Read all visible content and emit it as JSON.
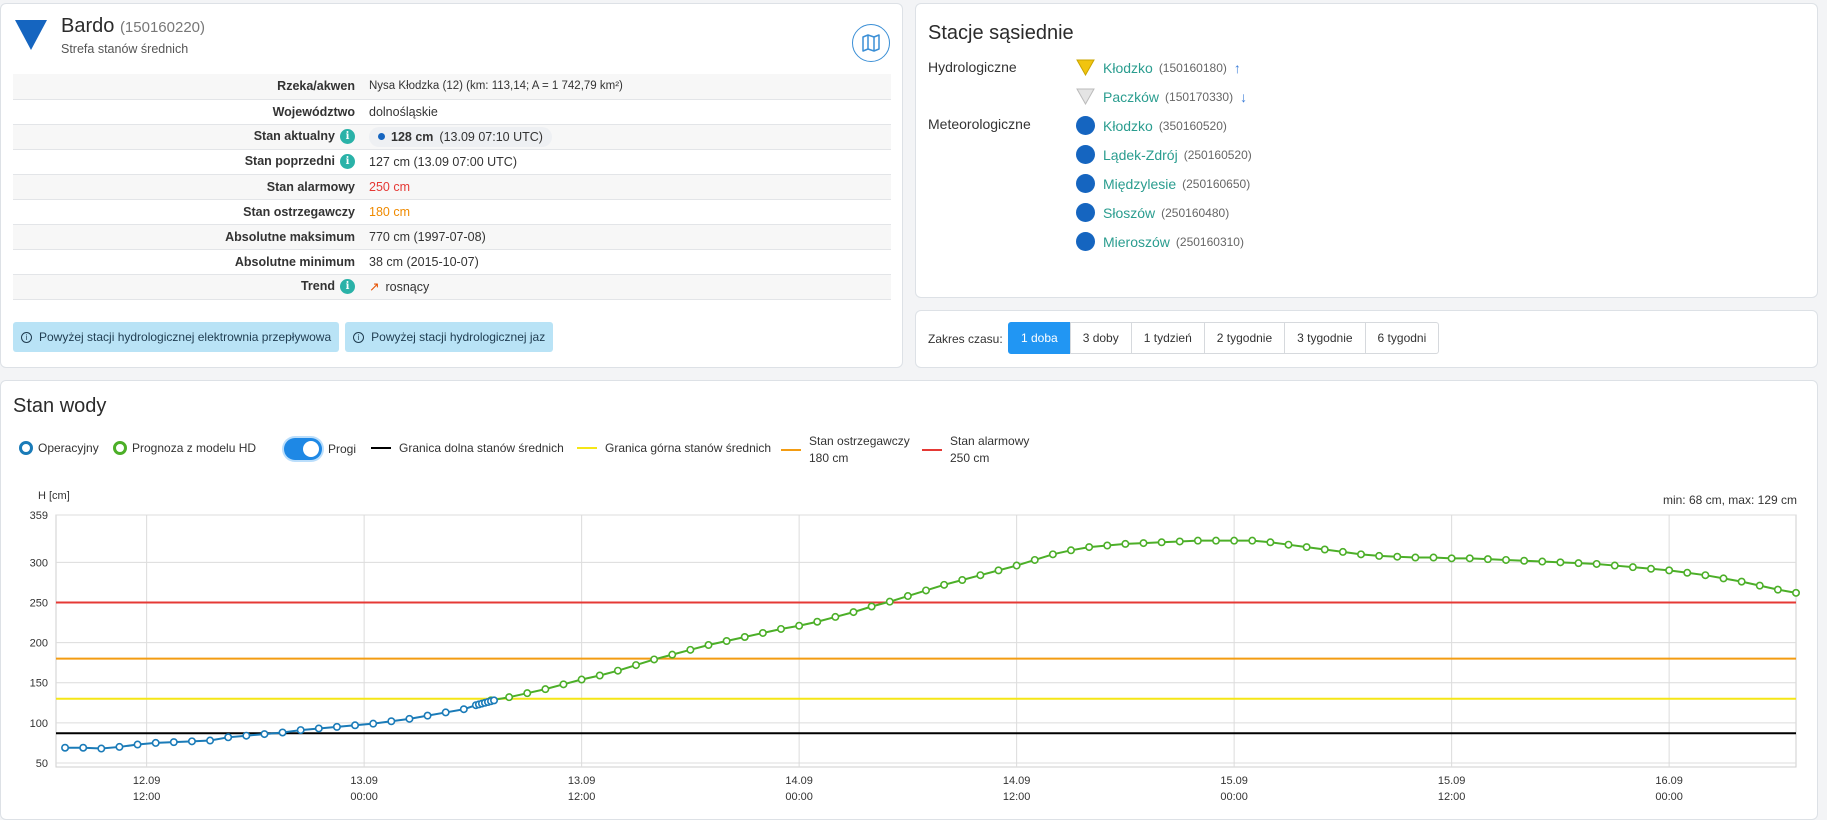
{
  "station": {
    "name": "Bardo",
    "code": "(150160220)",
    "zone": "Strefa stanów średnich",
    "rows": [
      {
        "label": "Rzeka/akwen",
        "value": "Nysa Kłodzka (12) (km: 113,14; A = 1 742,79 km²)"
      },
      {
        "label": "Województwo",
        "value": "dolnośląskie"
      },
      {
        "label": "Stan aktualny",
        "value_bold": "128 cm",
        "value_time": "(13.09 07:10 UTC)"
      },
      {
        "label": "Stan poprzedni",
        "value": "127 cm (13.09 07:00 UTC)"
      },
      {
        "label": "Stan alarmowy",
        "value": "250 cm"
      },
      {
        "label": "Stan ostrzegawczy",
        "value": "180 cm"
      },
      {
        "label": "Absolutne maksimum",
        "value": "770 cm (1997-07-08)"
      },
      {
        "label": "Absolutne minimum",
        "value": "38 cm (2015-10-07)"
      },
      {
        "label": "Trend",
        "value": "rosnący"
      }
    ],
    "chips": [
      "Powyżej stacji hydrologicznej elektrownia przepływowa",
      "Powyżej stacji hydrologicznej jaz"
    ]
  },
  "neighbors": {
    "title": "Stacje sąsiednie",
    "hydro_label": "Hydrologiczne",
    "meteo_label": "Meteorologiczne",
    "hydro": [
      {
        "name": "Kłodzko",
        "code": "(150160180)",
        "arrow": "↑",
        "color": "#f1c40f"
      },
      {
        "name": "Paczków",
        "code": "(150170330)",
        "arrow": "↓",
        "color": "#dddddd"
      }
    ],
    "meteo": [
      {
        "name": "Kłodzko",
        "code": "(350160520)"
      },
      {
        "name": "Lądek-Zdrój",
        "code": "(250160520)"
      },
      {
        "name": "Międzylesie",
        "code": "(250160650)"
      },
      {
        "name": "Słoszów",
        "code": "(250160480)"
      },
      {
        "name": "Mieroszów",
        "code": "(250160310)"
      }
    ]
  },
  "range": {
    "label": "Zakres czasu:",
    "options": [
      "1 doba",
      "3 doby",
      "1 tydzień",
      "2 tygodnie",
      "3 tygodnie",
      "6 tygodni"
    ],
    "active": 0
  },
  "water": {
    "title": "Stan wody",
    "legend": {
      "operational": "Operacyjny",
      "forecast": "Prognoza z modelu HD",
      "thresholds": "Progi",
      "lower": "Granica dolna stanów średnich",
      "upper": "Granica górna stanów średnich",
      "warning_title": "Stan ostrzegawczy",
      "warning_value": "180 cm",
      "alarm_title": "Stan alarmowy",
      "alarm_value": "250 cm"
    },
    "minmax": "min: 68 cm, max: 129 cm",
    "colors": {
      "operational": "#1a7bb8",
      "forecast": "#4caf28",
      "lower": "#000000",
      "upper": "#f5e616",
      "warning": "#f39c12",
      "alarm": "#e53935"
    }
  },
  "chart_data": {
    "type": "line",
    "ylabel": "H [cm]",
    "ylim": [
      45,
      359
    ],
    "yticks": [
      50,
      100,
      150,
      200,
      250,
      300,
      359
    ],
    "xlim": [
      "2024-09-12 07:00",
      "2024-09-16 07:00"
    ],
    "xticks": [
      {
        "date": "12.09",
        "time": "12:00",
        "t": "2024-09-12 12:00"
      },
      {
        "date": "13.09",
        "time": "00:00",
        "t": "2024-09-13 00:00"
      },
      {
        "date": "13.09",
        "time": "12:00",
        "t": "2024-09-13 12:00"
      },
      {
        "date": "14.09",
        "time": "00:00",
        "t": "2024-09-14 00:00"
      },
      {
        "date": "14.09",
        "time": "12:00",
        "t": "2024-09-14 12:00"
      },
      {
        "date": "15.09",
        "time": "00:00",
        "t": "2024-09-15 00:00"
      },
      {
        "date": "15.09",
        "time": "12:00",
        "t": "2024-09-15 12:00"
      },
      {
        "date": "16.09",
        "time": "00:00",
        "t": "2024-09-16 00:00"
      }
    ],
    "thresholds": [
      {
        "name": "Granica dolna stanów średnich",
        "value": 87
      },
      {
        "name": "Granica górna stanów średnich",
        "value": 130
      },
      {
        "name": "Stan ostrzegawczy",
        "value": 180
      },
      {
        "name": "Stan alarmowy",
        "value": 250
      }
    ],
    "series": [
      {
        "name": "Operacyjny",
        "points": [
          [
            "2024-09-12 07:30",
            69
          ],
          [
            "2024-09-12 08:30",
            69
          ],
          [
            "2024-09-12 09:30",
            68
          ],
          [
            "2024-09-12 10:30",
            70
          ],
          [
            "2024-09-12 11:30",
            73
          ],
          [
            "2024-09-12 12:30",
            75
          ],
          [
            "2024-09-12 13:30",
            76
          ],
          [
            "2024-09-12 14:30",
            77
          ],
          [
            "2024-09-12 15:30",
            78
          ],
          [
            "2024-09-12 16:30",
            82
          ],
          [
            "2024-09-12 17:30",
            84
          ],
          [
            "2024-09-12 18:30",
            86
          ],
          [
            "2024-09-12 19:30",
            88
          ],
          [
            "2024-09-12 20:30",
            91
          ],
          [
            "2024-09-12 21:30",
            93
          ],
          [
            "2024-09-12 22:30",
            95
          ],
          [
            "2024-09-12 23:30",
            97
          ],
          [
            "2024-09-13 00:30",
            99
          ],
          [
            "2024-09-13 01:30",
            102
          ],
          [
            "2024-09-13 02:30",
            105
          ],
          [
            "2024-09-13 03:30",
            109
          ],
          [
            "2024-09-13 04:30",
            113
          ],
          [
            "2024-09-13 05:30",
            117
          ],
          [
            "2024-09-13 06:10",
            122
          ],
          [
            "2024-09-13 06:20",
            123
          ],
          [
            "2024-09-13 06:30",
            124
          ],
          [
            "2024-09-13 06:40",
            125
          ],
          [
            "2024-09-13 06:50",
            126
          ],
          [
            "2024-09-13 07:00",
            127
          ],
          [
            "2024-09-13 07:10",
            128
          ]
        ]
      },
      {
        "name": "Prognoza z modelu HD",
        "points": [
          [
            "2024-09-13 07:00",
            128
          ],
          [
            "2024-09-13 08:00",
            132
          ],
          [
            "2024-09-13 09:00",
            137
          ],
          [
            "2024-09-13 10:00",
            142
          ],
          [
            "2024-09-13 11:00",
            148
          ],
          [
            "2024-09-13 12:00",
            154
          ],
          [
            "2024-09-13 13:00",
            159
          ],
          [
            "2024-09-13 14:00",
            165
          ],
          [
            "2024-09-13 15:00",
            172
          ],
          [
            "2024-09-13 16:00",
            179
          ],
          [
            "2024-09-13 17:00",
            185
          ],
          [
            "2024-09-13 18:00",
            191
          ],
          [
            "2024-09-13 19:00",
            197
          ],
          [
            "2024-09-13 20:00",
            202
          ],
          [
            "2024-09-13 21:00",
            207
          ],
          [
            "2024-09-13 22:00",
            212
          ],
          [
            "2024-09-13 23:00",
            217
          ],
          [
            "2024-09-14 00:00",
            221
          ],
          [
            "2024-09-14 01:00",
            226
          ],
          [
            "2024-09-14 02:00",
            232
          ],
          [
            "2024-09-14 03:00",
            238
          ],
          [
            "2024-09-14 04:00",
            245
          ],
          [
            "2024-09-14 05:00",
            251
          ],
          [
            "2024-09-14 06:00",
            258
          ],
          [
            "2024-09-14 07:00",
            265
          ],
          [
            "2024-09-14 08:00",
            272
          ],
          [
            "2024-09-14 09:00",
            278
          ],
          [
            "2024-09-14 10:00",
            284
          ],
          [
            "2024-09-14 11:00",
            290
          ],
          [
            "2024-09-14 12:00",
            296
          ],
          [
            "2024-09-14 13:00",
            303
          ],
          [
            "2024-09-14 14:00",
            310
          ],
          [
            "2024-09-14 15:00",
            315
          ],
          [
            "2024-09-14 16:00",
            319
          ],
          [
            "2024-09-14 17:00",
            321
          ],
          [
            "2024-09-14 18:00",
            323
          ],
          [
            "2024-09-14 19:00",
            324
          ],
          [
            "2024-09-14 20:00",
            325
          ],
          [
            "2024-09-14 21:00",
            326
          ],
          [
            "2024-09-14 22:00",
            327
          ],
          [
            "2024-09-14 23:00",
            327
          ],
          [
            "2024-09-15 00:00",
            327
          ],
          [
            "2024-09-15 01:00",
            327
          ],
          [
            "2024-09-15 02:00",
            325
          ],
          [
            "2024-09-15 03:00",
            322
          ],
          [
            "2024-09-15 04:00",
            319
          ],
          [
            "2024-09-15 05:00",
            316
          ],
          [
            "2024-09-15 06:00",
            313
          ],
          [
            "2024-09-15 07:00",
            310
          ],
          [
            "2024-09-15 08:00",
            308
          ],
          [
            "2024-09-15 09:00",
            307
          ],
          [
            "2024-09-15 10:00",
            306
          ],
          [
            "2024-09-15 11:00",
            306
          ],
          [
            "2024-09-15 12:00",
            305
          ],
          [
            "2024-09-15 13:00",
            305
          ],
          [
            "2024-09-15 14:00",
            304
          ],
          [
            "2024-09-15 15:00",
            303
          ],
          [
            "2024-09-15 16:00",
            302
          ],
          [
            "2024-09-15 17:00",
            301
          ],
          [
            "2024-09-15 18:00",
            300
          ],
          [
            "2024-09-15 19:00",
            299
          ],
          [
            "2024-09-15 20:00",
            298
          ],
          [
            "2024-09-15 21:00",
            296
          ],
          [
            "2024-09-15 22:00",
            294
          ],
          [
            "2024-09-15 23:00",
            292
          ],
          [
            "2024-09-16 00:00",
            290
          ],
          [
            "2024-09-16 01:00",
            287
          ],
          [
            "2024-09-16 02:00",
            284
          ],
          [
            "2024-09-16 03:00",
            280
          ],
          [
            "2024-09-16 04:00",
            276
          ],
          [
            "2024-09-16 05:00",
            271
          ],
          [
            "2024-09-16 06:00",
            266
          ],
          [
            "2024-09-16 07:00",
            262
          ]
        ]
      }
    ]
  }
}
